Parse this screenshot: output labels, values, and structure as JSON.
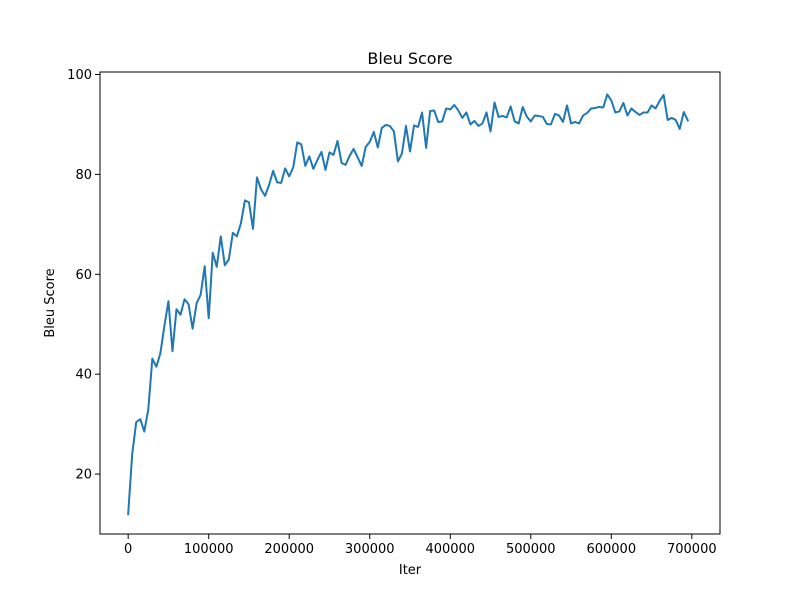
{
  "chart_data": {
    "type": "line",
    "title": "Bleu Score",
    "xlabel": "Iter",
    "ylabel": "Bleu Score",
    "xlim": [
      -35000,
      735000
    ],
    "ylim": [
      8,
      100.5
    ],
    "xticks": [
      0,
      100000,
      200000,
      300000,
      400000,
      500000,
      600000,
      700000
    ],
    "xtick_labels": [
      "0",
      "100000",
      "200000",
      "300000",
      "400000",
      "500000",
      "600000",
      "700000"
    ],
    "yticks": [
      20,
      40,
      60,
      80,
      100
    ],
    "ytick_labels": [
      "20",
      "40",
      "60",
      "80",
      "100"
    ],
    "grid": false,
    "series": [
      {
        "color": "#1f77b4",
        "x": [
          0,
          5000,
          10000,
          15000,
          20000,
          25000,
          30000,
          35000,
          40000,
          45000,
          50000,
          55000,
          60000,
          65000,
          70000,
          75000,
          80000,
          85000,
          90000,
          95000,
          100000,
          105000,
          110000,
          115000,
          120000,
          125000,
          130000,
          135000,
          140000,
          145000,
          150000,
          155000,
          160000,
          165000,
          170000,
          175000,
          180000,
          185000,
          190000,
          195000,
          200000,
          205000,
          210000,
          215000,
          220000,
          225000,
          230000,
          235000,
          240000,
          245000,
          250000,
          255000,
          260000,
          265000,
          270000,
          275000,
          280000,
          285000,
          290000,
          295000,
          300000,
          305000,
          310000,
          315000,
          320000,
          325000,
          330000,
          335000,
          340000,
          345000,
          350000,
          355000,
          360000,
          365000,
          370000,
          375000,
          380000,
          385000,
          390000,
          395000,
          400000,
          405000,
          410000,
          415000,
          420000,
          425000,
          430000,
          435000,
          440000,
          445000,
          450000,
          455000,
          460000,
          465000,
          470000,
          475000,
          480000,
          485000,
          490000,
          495000,
          500000,
          505000,
          510000,
          515000,
          520000,
          525000,
          530000,
          535000,
          540000,
          545000,
          550000,
          555000,
          560000,
          565000,
          570000,
          575000,
          580000,
          585000,
          590000,
          595000,
          600000,
          605000,
          610000,
          615000,
          620000,
          625000,
          630000,
          635000,
          640000,
          645000,
          650000,
          655000,
          660000,
          665000,
          670000,
          675000,
          680000,
          685000,
          690000,
          695000
        ],
        "y": [
          12.0,
          24.0,
          30.4,
          31.0,
          28.5,
          33.0,
          43.1,
          41.5,
          44.2,
          49.7,
          54.6,
          44.6,
          53.0,
          51.9,
          55.0,
          54.0,
          49.1,
          54.2,
          55.9,
          61.6,
          51.2,
          64.3,
          61.5,
          67.6,
          61.8,
          63.0,
          68.3,
          67.6,
          70.2,
          74.8,
          74.4,
          69.1,
          79.4,
          77.0,
          75.7,
          77.9,
          80.7,
          78.4,
          78.3,
          81.2,
          79.6,
          81.4,
          86.4,
          86.0,
          81.7,
          83.6,
          81.1,
          82.9,
          84.5,
          80.9,
          84.4,
          83.9,
          86.7,
          82.3,
          81.9,
          83.7,
          85.1,
          83.4,
          81.7,
          85.5,
          86.5,
          88.5,
          85.4,
          89.3,
          89.9,
          89.7,
          88.6,
          82.6,
          84.2,
          89.7,
          84.6,
          89.8,
          89.5,
          92.4,
          85.3,
          92.7,
          92.8,
          90.5,
          90.6,
          93.2,
          93.0,
          93.9,
          92.8,
          91.3,
          92.4,
          90.0,
          90.7,
          89.7,
          90.2,
          92.4,
          88.6,
          94.4,
          91.5,
          91.7,
          91.4,
          93.6,
          90.6,
          90.2,
          93.5,
          91.6,
          90.6,
          91.8,
          91.7,
          91.5,
          90.1,
          90.0,
          92.1,
          91.8,
          90.5,
          93.8,
          90.2,
          90.5,
          90.2,
          91.8,
          92.3,
          93.2,
          93.3,
          93.5,
          93.4,
          96.0,
          94.8,
          92.4,
          92.6,
          94.3,
          91.8,
          93.2,
          92.5,
          91.9,
          92.4,
          92.4,
          93.8,
          93.2,
          94.7,
          95.9,
          90.9,
          91.3,
          90.9,
          89.1,
          92.5,
          90.8
        ]
      }
    ]
  }
}
